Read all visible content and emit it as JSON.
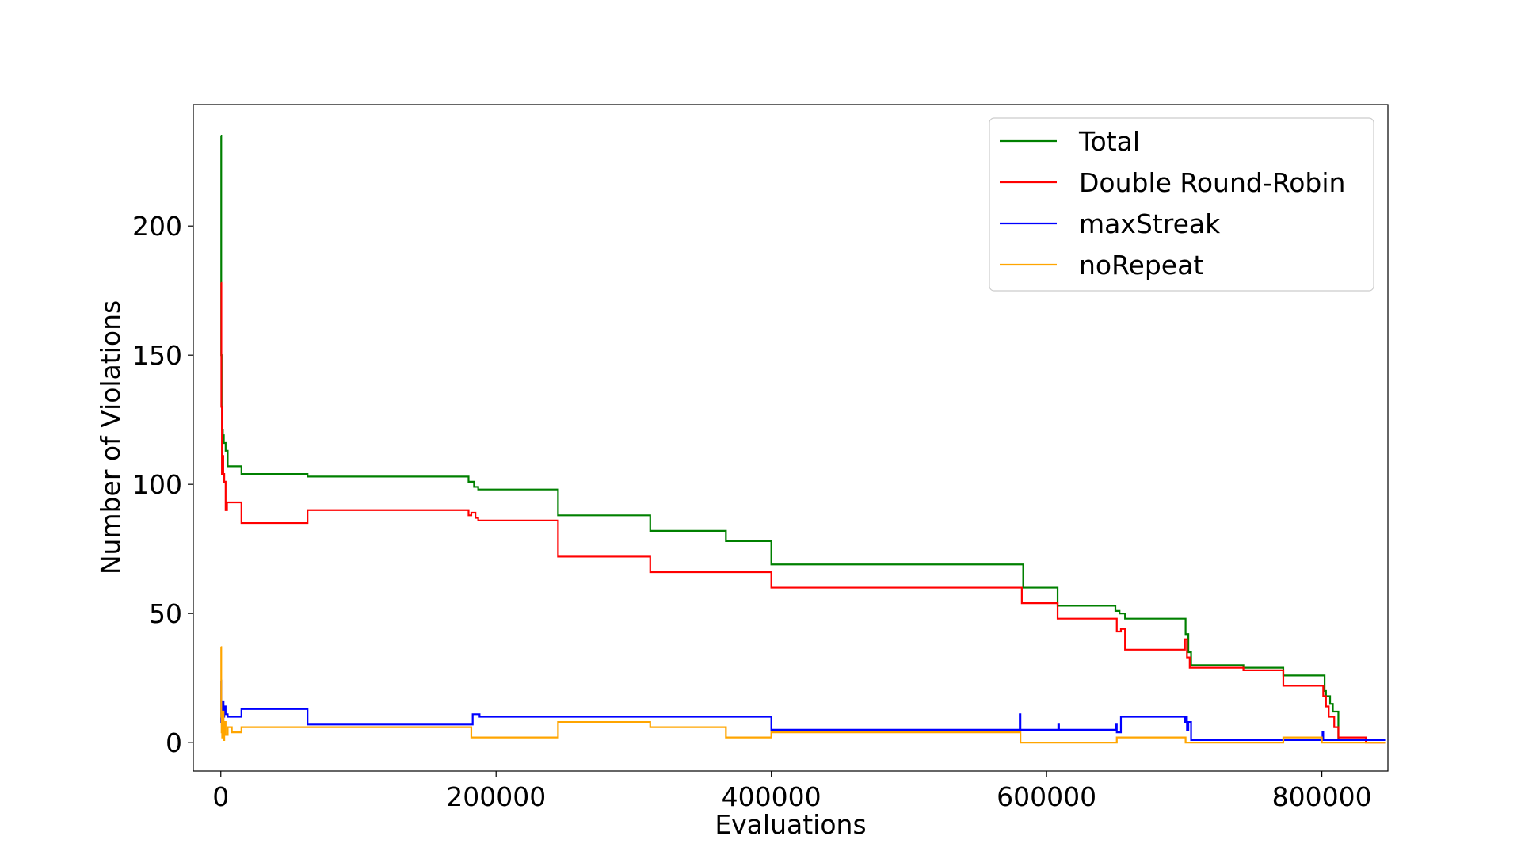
{
  "chart_data": {
    "type": "line",
    "title": "",
    "xlabel": "Evaluations",
    "ylabel": "Number of Violations",
    "xlim": [
      -20000,
      848000
    ],
    "ylim": [
      -11,
      247
    ],
    "xticks": [
      0,
      200000,
      400000,
      600000,
      800000
    ],
    "xtick_labels": [
      "0",
      "200000",
      "400000",
      "600000",
      "800000"
    ],
    "yticks": [
      0,
      50,
      100,
      150,
      200
    ],
    "ytick_labels": [
      "0",
      "50",
      "100",
      "150",
      "200"
    ],
    "grid": false,
    "legend_position": "upper right",
    "step": true,
    "series": [
      {
        "name": "Total",
        "color": "#008000",
        "x": [
          0,
          300,
          600,
          1000,
          1500,
          2200,
          3500,
          5000,
          15000,
          63000,
          180000,
          184000,
          187000,
          245000,
          312000,
          367000,
          400000,
          580000,
          583000,
          608000,
          650000,
          653000,
          657000,
          700000,
          701000,
          703000,
          705000,
          743000,
          772000,
          800000,
          802000,
          803000,
          806000,
          808000,
          812000,
          846000
        ],
        "y": [
          235,
          150,
          130,
          121,
          119,
          116,
          113,
          107,
          104,
          103,
          101,
          99,
          98,
          88,
          82,
          78,
          69,
          69,
          60,
          53,
          51,
          50,
          48,
          48,
          42,
          35,
          30,
          29,
          26,
          26,
          20,
          18,
          15,
          12,
          1,
          1
        ]
      },
      {
        "name": "Double Round-Robin",
        "color": "#ff0000",
        "x": [
          0,
          400,
          800,
          1200,
          1800,
          2500,
          3500,
          4500,
          6000,
          15000,
          63000,
          180000,
          182000,
          185000,
          187000,
          245000,
          312000,
          400000,
          580000,
          582000,
          608000,
          650000,
          651000,
          654000,
          657000,
          700000,
          700500,
          702000,
          704000,
          743000,
          772000,
          800000,
          801000,
          803000,
          805000,
          809000,
          812000,
          832000,
          846000
        ],
        "y": [
          178,
          130,
          104,
          111,
          104,
          101,
          90,
          93,
          93,
          85,
          90,
          88,
          89,
          87,
          86,
          72,
          66,
          60,
          60,
          54,
          48,
          48,
          43,
          44,
          36,
          36,
          40,
          33,
          29,
          28,
          22,
          22,
          18,
          14,
          10,
          6,
          2,
          0,
          0
        ]
      },
      {
        "name": "maxStreak",
        "color": "#0000ff",
        "x": [
          0,
          300,
          600,
          1000,
          1500,
          2000,
          2500,
          3500,
          5000,
          8000,
          15000,
          63000,
          180000,
          183000,
          188000,
          245000,
          312000,
          400000,
          580000,
          580500,
          581000,
          608000,
          608500,
          609000,
          650000,
          650500,
          651000,
          654000,
          700000,
          700500,
          701000,
          702000,
          703000,
          705000,
          772000,
          800000,
          800500,
          801000,
          812000,
          846000
        ],
        "y": [
          24,
          8,
          15,
          11,
          16,
          10,
          14,
          11,
          10,
          10,
          13,
          7,
          7,
          11,
          10,
          10,
          10,
          5,
          5,
          11,
          5,
          5,
          7,
          5,
          5,
          7,
          4,
          10,
          10,
          8,
          10,
          5,
          8,
          1,
          1,
          1,
          4,
          1,
          1,
          1
        ]
      },
      {
        "name": "noRepeat",
        "color": "#ffa500",
        "x": [
          0,
          300,
          600,
          1000,
          1500,
          2000,
          2500,
          3500,
          5000,
          8000,
          15000,
          63000,
          180000,
          182000,
          187000,
          245000,
          312000,
          367000,
          400000,
          580000,
          581000,
          650000,
          651000,
          654000,
          700000,
          701000,
          772000,
          800000,
          812000,
          846000
        ],
        "y": [
          37,
          10,
          4,
          2,
          12,
          1,
          8,
          3,
          6,
          4,
          6,
          6,
          6,
          2,
          2,
          8,
          6,
          2,
          4,
          4,
          0,
          0,
          2,
          2,
          2,
          0,
          2,
          0,
          0,
          0
        ]
      }
    ]
  }
}
